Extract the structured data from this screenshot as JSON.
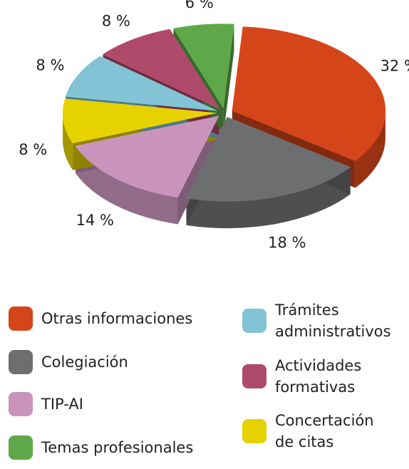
{
  "chart_data": {
    "type": "pie3d",
    "categories": [
      "Otras informaciones",
      "Colegiación",
      "TIP-AI",
      "Concertación de citas",
      "Trámites administrativos",
      "Actividades formativas",
      "Temas profesionales"
    ],
    "values": [
      32,
      18,
      14,
      8,
      8,
      8,
      6
    ],
    "value_labels": [
      "32 %",
      "18 %",
      "14 %",
      "8 %",
      "8 %",
      "8 %",
      "6 %"
    ],
    "colors": [
      "#d4451a",
      "#6d6e70",
      "#c994bc",
      "#e6d200",
      "#82c4d6",
      "#b04a6a",
      "#5ea84a"
    ]
  }
}
